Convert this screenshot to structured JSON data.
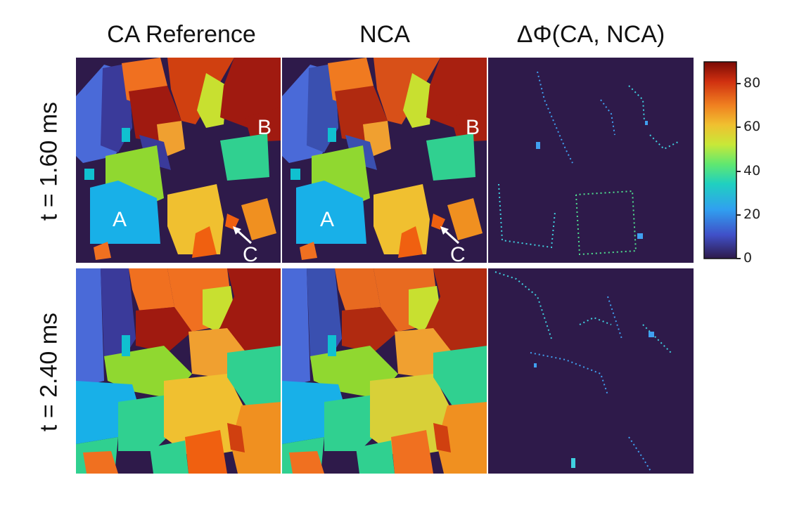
{
  "columns": [
    "CA Reference",
    "NCA",
    "ΔΦ(CA, NCA)"
  ],
  "rows": [
    "t = 1.60 ms",
    "t = 2.40 ms"
  ],
  "grain_labels": {
    "a": "A",
    "b": "B",
    "c": "C"
  },
  "colorbar": {
    "min": 0,
    "max": 90,
    "ticks": [
      "0",
      "20",
      "40",
      "60",
      "80"
    ]
  },
  "colors": {
    "background": "#2e1a4a",
    "boundary": "#ffffff"
  }
}
